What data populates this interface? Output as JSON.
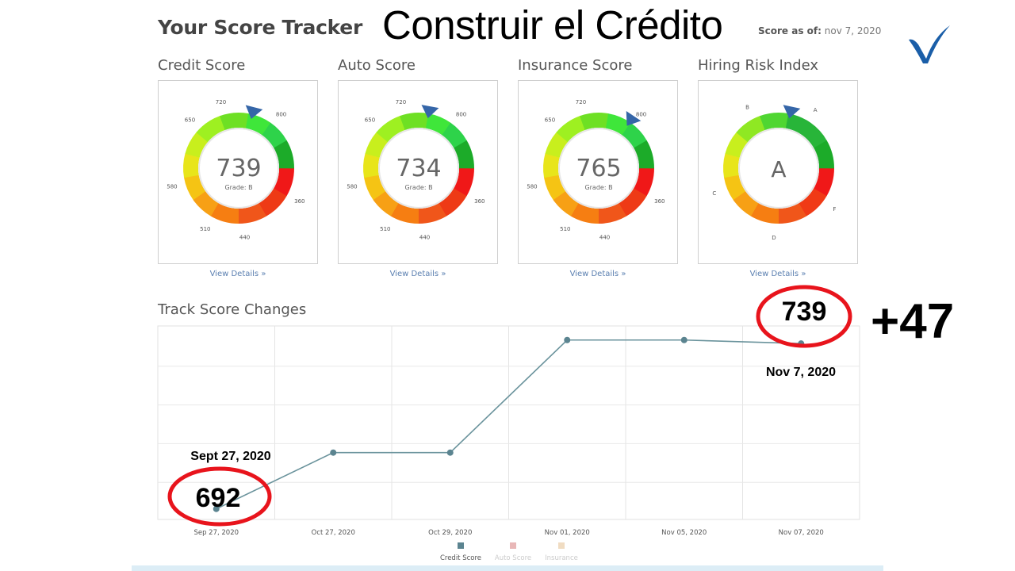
{
  "header": {
    "tracker_title": "Your Score Tracker",
    "overlay_title": "Construir el Crédito",
    "score_as_of_label": "Score as of:",
    "score_as_of_date": "nov 7, 2020"
  },
  "cards": [
    {
      "title": "Credit Score",
      "value": "739",
      "grade": "Grade: B",
      "link": "View Details »",
      "ticks": [
        "720",
        "800",
        "650",
        "580",
        "510",
        "440",
        "360"
      ],
      "pointer_score": 739
    },
    {
      "title": "Auto Score",
      "value": "734",
      "grade": "Grade: B",
      "link": "View Details »",
      "ticks": [
        "720",
        "800",
        "650",
        "580",
        "510",
        "440",
        "360"
      ],
      "pointer_score": 734
    },
    {
      "title": "Insurance Score",
      "value": "765",
      "grade": "Grade: B",
      "link": "View Details »",
      "ticks": [
        "720",
        "800",
        "650",
        "580",
        "510",
        "440",
        "360"
      ],
      "pointer_score": 765
    },
    {
      "title": "Hiring Risk Index",
      "value": "A",
      "grade": "",
      "link": "View Details »",
      "ticks": [
        "B",
        "A",
        "C",
        "F",
        "D"
      ],
      "pointer_grade": "A"
    }
  ],
  "track": {
    "title": "Track Score Changes",
    "legend": [
      "Credit Score",
      "Auto Score",
      "Insurance"
    ],
    "legend_colors": [
      "#5b8490",
      "#e8b7b7",
      "#f0dcc2"
    ],
    "line_color": "#6a939c"
  },
  "chart_data": {
    "type": "line",
    "categories": [
      "Sep 27, 2020",
      "Oct 27, 2020",
      "Oct 29, 2020",
      "Nov 01, 2020",
      "Nov 05, 2020",
      "Nov 07, 2020"
    ],
    "series": [
      {
        "name": "Credit Score",
        "values": [
          692,
          708,
          708,
          740,
          740,
          739
        ]
      }
    ]
  },
  "annotations": {
    "start_date": "Sept 27, 2020",
    "start_value": "692",
    "end_date": "Nov 7, 2020",
    "end_value": "739",
    "delta": "+47",
    "circle_color": "#e8141c"
  },
  "icons": {
    "check": "checkmark-icon",
    "color": "#1a5ea8"
  }
}
